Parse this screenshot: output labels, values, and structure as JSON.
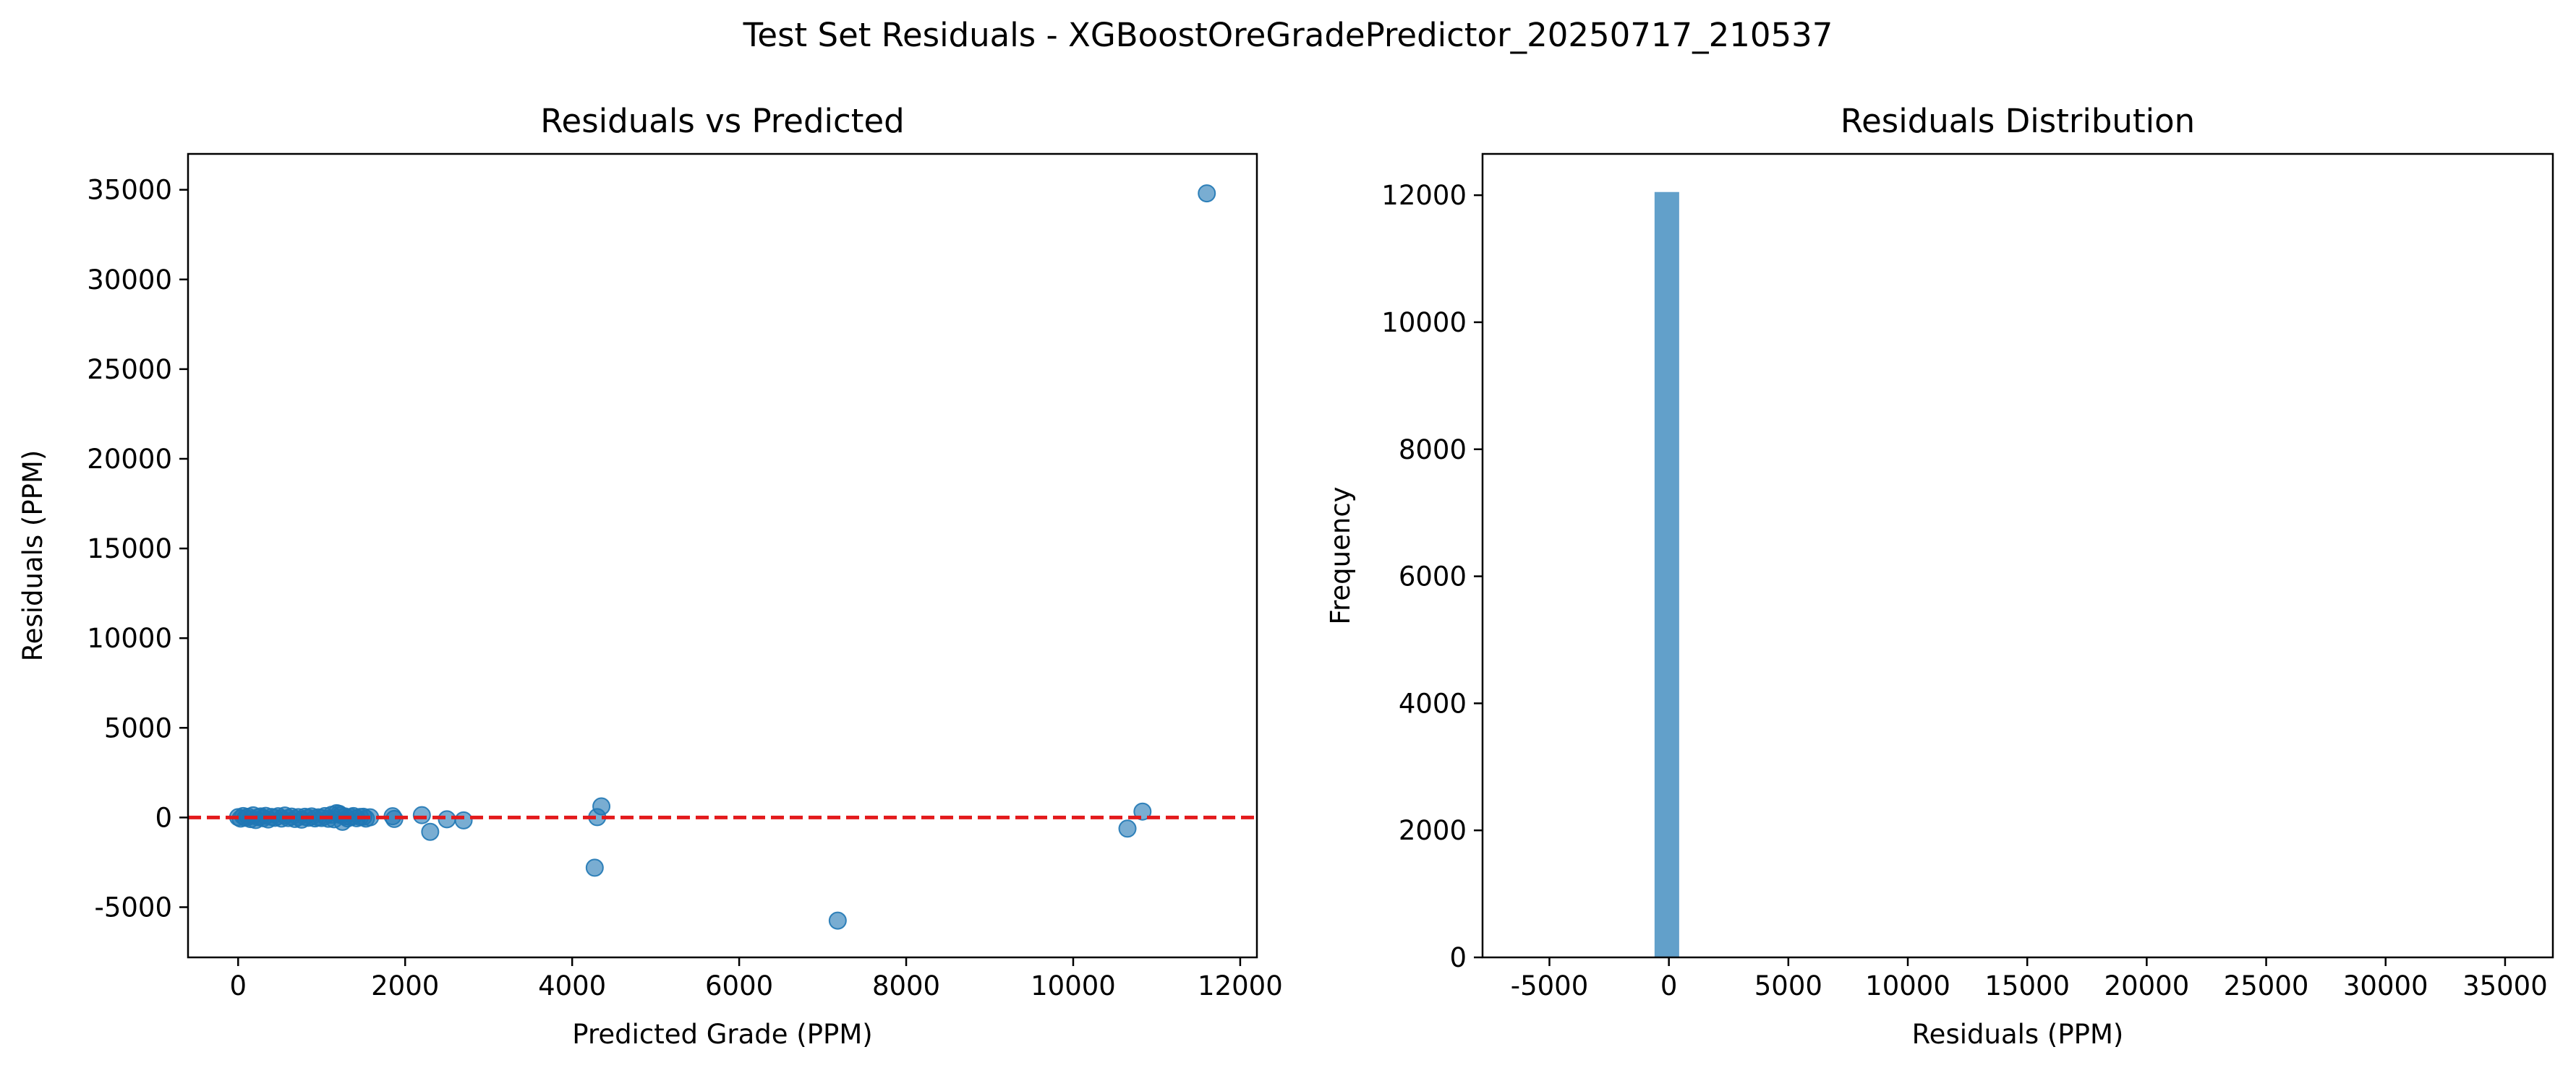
{
  "figure": {
    "suptitle": "Test Set Residuals - XGBoostOreGradePredictor_20250717_210537"
  },
  "chart_data": [
    {
      "type": "scatter",
      "title": "Residuals vs Predicted",
      "xlabel": "Predicted Grade (PPM)",
      "ylabel": "Residuals (PPM)",
      "xlim": [
        -600,
        12200
      ],
      "ylim": [
        -7800,
        37000
      ],
      "xticks": [
        0,
        2000,
        4000,
        6000,
        8000,
        10000,
        12000
      ],
      "yticks": [
        -5000,
        0,
        5000,
        10000,
        15000,
        20000,
        25000,
        30000,
        35000
      ],
      "grid": false,
      "marker_color": "#1f77b4",
      "marker_alpha": 0.6,
      "reference_line": {
        "y": 0,
        "color": "#e31a1c",
        "style": "dashed"
      },
      "points": [
        [
          0,
          20
        ],
        [
          30,
          -60
        ],
        [
          60,
          80
        ],
        [
          90,
          -20
        ],
        [
          120,
          40
        ],
        [
          150,
          -90
        ],
        [
          180,
          120
        ],
        [
          210,
          -140
        ],
        [
          240,
          10
        ],
        [
          270,
          60
        ],
        [
          300,
          -40
        ],
        [
          330,
          90
        ],
        [
          360,
          -110
        ],
        [
          400,
          30
        ],
        [
          440,
          -20
        ],
        [
          480,
          70
        ],
        [
          520,
          -60
        ],
        [
          560,
          110
        ],
        [
          600,
          -30
        ],
        [
          640,
          50
        ],
        [
          680,
          -80
        ],
        [
          720,
          20
        ],
        [
          760,
          -120
        ],
        [
          800,
          40
        ],
        [
          840,
          -20
        ],
        [
          880,
          60
        ],
        [
          920,
          -50
        ],
        [
          960,
          10
        ],
        [
          1000,
          -30
        ],
        [
          1040,
          80
        ],
        [
          1080,
          -70
        ],
        [
          1120,
          150
        ],
        [
          1150,
          -100
        ],
        [
          1180,
          240
        ],
        [
          1210,
          200
        ],
        [
          1230,
          130
        ],
        [
          1250,
          -240
        ],
        [
          1280,
          60
        ],
        [
          1310,
          -50
        ],
        [
          1350,
          20
        ],
        [
          1380,
          80
        ],
        [
          1420,
          -40
        ],
        [
          1460,
          30
        ],
        [
          1500,
          40
        ],
        [
          1530,
          -60
        ],
        [
          1580,
          10
        ],
        [
          1850,
          70
        ],
        [
          1870,
          -80
        ],
        [
          2200,
          130
        ],
        [
          2300,
          -800
        ],
        [
          2500,
          -100
        ],
        [
          2700,
          -160
        ],
        [
          4270,
          -2800
        ],
        [
          4300,
          20
        ],
        [
          4350,
          620
        ],
        [
          7180,
          -5750
        ],
        [
          10650,
          -620
        ],
        [
          10830,
          330
        ],
        [
          11600,
          34800
        ]
      ]
    },
    {
      "type": "bar",
      "title": "Residuals Distribution",
      "xlabel": "Residuals (PPM)",
      "ylabel": "Frequency",
      "xlim": [
        -7800,
        37000
      ],
      "ylim": [
        0,
        12650
      ],
      "xticks": [
        -5000,
        0,
        5000,
        10000,
        15000,
        20000,
        25000,
        30000,
        35000
      ],
      "yticks": [
        0,
        2000,
        4000,
        6000,
        8000,
        10000,
        12000
      ],
      "grid": false,
      "bar_color": "#1f77b4",
      "bar_alpha": 0.7,
      "bins": [
        {
          "x0": -5750,
          "x1": -4720,
          "count": 1
        },
        {
          "x0": -3690,
          "x1": -2660,
          "count": 1
        },
        {
          "x0": -1630,
          "x1": -600,
          "count": 2
        },
        {
          "x0": -600,
          "x1": 430,
          "count": 12050
        },
        {
          "x0": 430,
          "x1": 1460,
          "count": 3
        },
        {
          "x0": 33770,
          "x1": 34800,
          "count": 1
        }
      ]
    }
  ]
}
